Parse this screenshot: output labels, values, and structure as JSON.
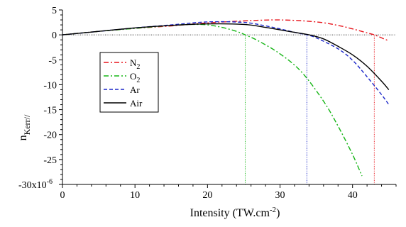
{
  "chart_data": {
    "type": "line",
    "xlabel": "Intensity (TW.cm",
    "xlabel_sup": "-2",
    "xlabel_end": ")",
    "ylabel_main": "n",
    "ylabel_sub": "Kerr//",
    "xlim": [
      0,
      46
    ],
    "ylim": [
      -30,
      5
    ],
    "x_ticks": [
      0,
      10,
      20,
      30,
      40
    ],
    "y_ticks": [
      5,
      0,
      -5,
      -10,
      -15,
      -20,
      -25,
      -30
    ],
    "y_tick_labels": [
      "5",
      "0",
      "-5",
      "-10",
      "-15",
      "-20",
      "-25",
      "-30x10"
    ],
    "y_exponent_label": "-6",
    "legend_position": "upper-left-inside",
    "series": [
      {
        "name": "N",
        "name_sub": "2",
        "color": "#e8141b",
        "dash": "7,3,2,3",
        "x": [
          0,
          5,
          10,
          15,
          20,
          25,
          30,
          35,
          38,
          40,
          42,
          43,
          44,
          45
        ],
        "y": [
          0,
          0.7,
          1.3,
          1.8,
          2.4,
          2.8,
          3.0,
          2.6,
          1.9,
          1.2,
          0.4,
          0,
          -0.6,
          -1.2
        ],
        "zero_crossing": 43
      },
      {
        "name": "O",
        "name_sub": "2",
        "color": "#15b515",
        "dash": "7,3,2,3",
        "x": [
          0,
          5,
          10,
          15,
          18,
          20,
          22,
          24,
          25.2,
          27,
          30,
          33,
          36,
          38,
          40,
          41.3
        ],
        "y": [
          0,
          0.7,
          1.3,
          1.9,
          2.1,
          2.0,
          1.5,
          0.7,
          0,
          -1.2,
          -3.8,
          -7.5,
          -13.3,
          -18.3,
          -24.0,
          -28.3
        ],
        "zero_crossing": 25.2
      },
      {
        "name": "Ar",
        "name_sub": "",
        "color": "#1a26c8",
        "dash": "5,3",
        "x": [
          0,
          5,
          10,
          15,
          20,
          25,
          28,
          30,
          32,
          33.7,
          35,
          38,
          40,
          42,
          44,
          45
        ],
        "y": [
          0,
          0.7,
          1.4,
          2.0,
          2.6,
          2.5,
          1.8,
          1.2,
          0.5,
          0,
          -0.6,
          -2.8,
          -5.1,
          -8.4,
          -12.0,
          -14.0
        ],
        "zero_crossing": 33.7
      },
      {
        "name": "Air",
        "name_sub": "",
        "color": "#000000",
        "dash": "",
        "x": [
          0,
          5,
          10,
          15,
          20,
          25,
          28,
          30,
          32,
          34,
          36,
          38,
          40,
          42,
          44,
          45
        ],
        "y": [
          0,
          0.7,
          1.4,
          1.9,
          2.2,
          2.1,
          1.5,
          1.0,
          0.5,
          0,
          -0.8,
          -2.3,
          -4.0,
          -6.3,
          -9.3,
          -11.0
        ]
      }
    ]
  }
}
